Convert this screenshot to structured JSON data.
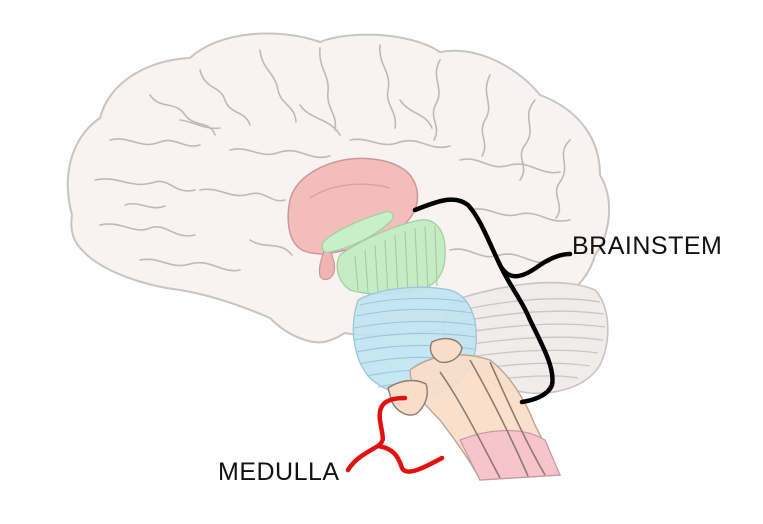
{
  "labels": {
    "brainstem": "BRAINSTEM",
    "medulla": "MEDULLA"
  },
  "colors": {
    "cortex_fill": "#f8f3f0",
    "cortex_outline": "#c7c4c2",
    "sulci": "#bcbab8",
    "thalamus": "#f2b3b3",
    "hypothalamus_green": "#c8f0c8",
    "midbrain": "#c6ecc6",
    "pons": "#bfe3f2",
    "pons_lines": "#9ec5d8",
    "cerebellum": "#f0eceb",
    "medulla_peach": "#f8ddc8",
    "spinal_pink": "#f7c4cc",
    "brainstem_bracket": "#000000",
    "medulla_bracket": "#e31010"
  }
}
